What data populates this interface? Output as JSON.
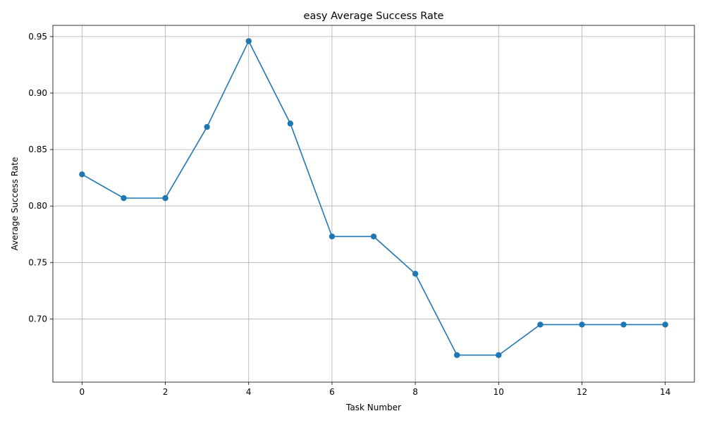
{
  "chart_data": {
    "type": "line",
    "title": "easy Average Success Rate",
    "xlabel": "Task Number",
    "ylabel": "Average Success Rate",
    "x": [
      0,
      1,
      2,
      3,
      4,
      5,
      6,
      7,
      8,
      9,
      10,
      11,
      12,
      13,
      14
    ],
    "series": [
      {
        "values": [
          0.828,
          0.807,
          0.807,
          0.87,
          0.946,
          0.873,
          0.773,
          0.773,
          0.74,
          0.668,
          0.668,
          0.695,
          0.695,
          0.695,
          0.695
        ],
        "color": "#1f77b4",
        "marker": "circle"
      }
    ],
    "xlim": [
      -0.7,
      14.7
    ],
    "ylim": [
      0.6441,
      0.9599
    ],
    "xticks": [
      0,
      2,
      4,
      6,
      8,
      10,
      12,
      14
    ],
    "xtick_labels": [
      "0",
      "2",
      "4",
      "6",
      "8",
      "10",
      "12",
      "14"
    ],
    "yticks": [
      0.7,
      0.75,
      0.8,
      0.85,
      0.9,
      0.95
    ],
    "ytick_labels": [
      "0.70",
      "0.75",
      "0.80",
      "0.85",
      "0.90",
      "0.95"
    ],
    "grid": true
  }
}
